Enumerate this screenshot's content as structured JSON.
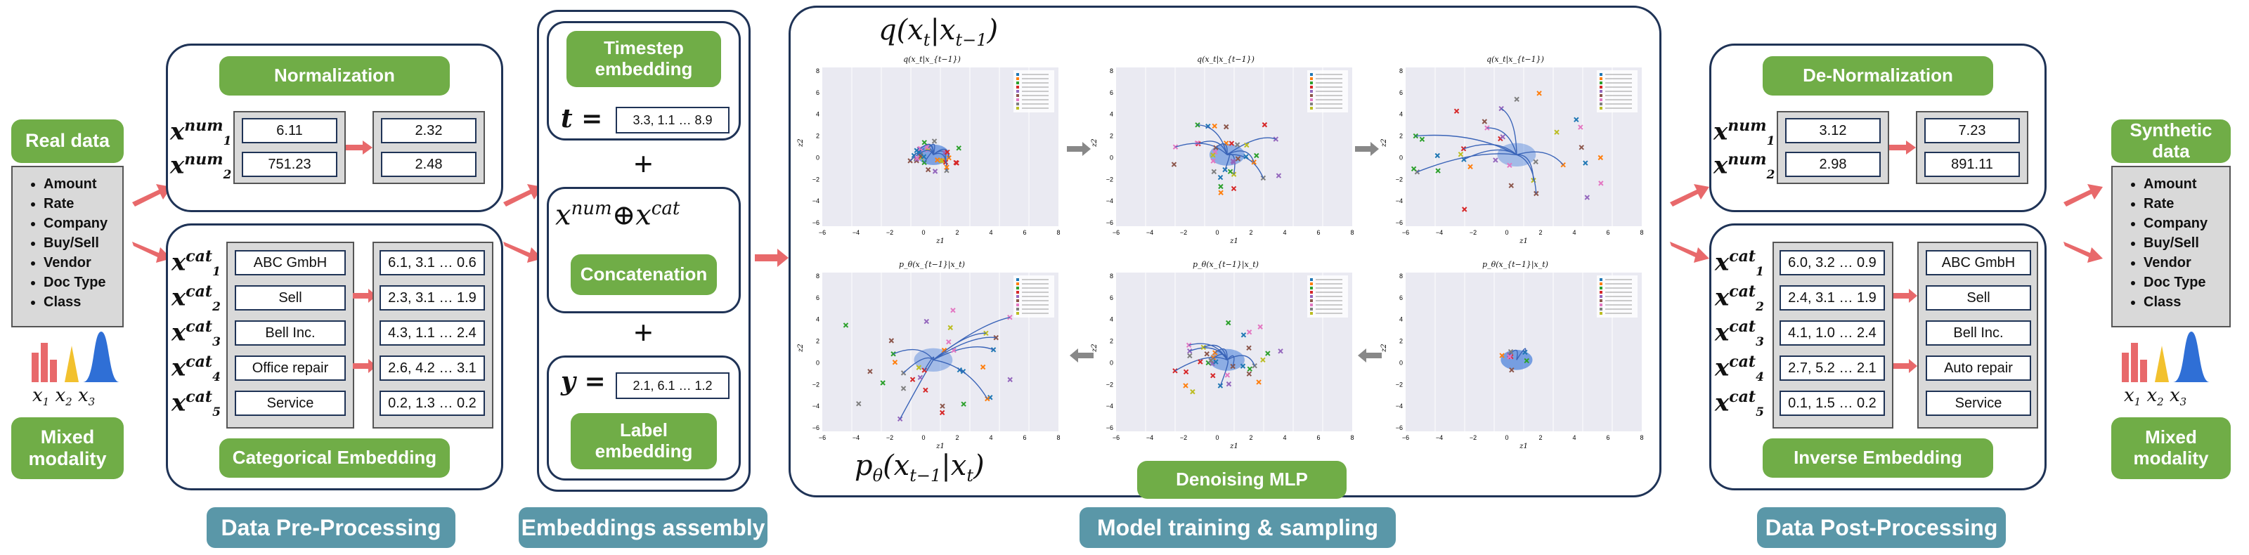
{
  "colors": {
    "green": "#70ad47",
    "teal": "#5a97a8",
    "navy": "#1f3356",
    "arrow_red": "#e8696b",
    "grey": "#d9d9d9",
    "plot_bg": "#eaeaf2"
  },
  "real_data": {
    "title": "Real data",
    "items": [
      "Amount",
      "Rate",
      "Company",
      "Buy/Sell",
      "Vendor",
      "Doc Type",
      "Class"
    ],
    "x_labels": [
      "x",
      "x",
      "x"
    ],
    "x_subs": [
      "1",
      "2",
      "3"
    ],
    "modality": "Mixed modality"
  },
  "synthetic_data": {
    "title": "Synthetic data",
    "items": [
      "Amount",
      "Rate",
      "Company",
      "Buy/Sell",
      "Vendor",
      "Doc Type",
      "Class"
    ],
    "modality": "Mixed modality"
  },
  "preprocessing": {
    "normalization_label": "Normalization",
    "num_vars": [
      "num",
      "num"
    ],
    "num_subs": [
      "1",
      "2"
    ],
    "num_inputs": [
      "6.11",
      "751.23"
    ],
    "num_outputs": [
      "2.32",
      "2.48"
    ],
    "cat_subs": [
      "1",
      "2",
      "3",
      "4",
      "5"
    ],
    "cat_inputs": [
      "ABC GmbH",
      "Sell",
      "Bell Inc.",
      "Office repair",
      "Service"
    ],
    "cat_outputs": [
      "6.1, 3.1 … 0.6",
      "2.3, 3.1 … 1.9",
      "4.3, 1.1 … 2.4",
      "2.6, 4.2 … 3.1",
      "0.2, 1.3 … 0.2"
    ],
    "embedding_label": "Categorical Embedding",
    "stage_label": "Data Pre-Processing"
  },
  "embeddings": {
    "timestep_label": "Timestep embedding",
    "t_var": "t =",
    "t_value": "3.3, 1.1 … 8.9",
    "plus1": "+",
    "concat_formula": "x^num⊕x^cat",
    "concat_label": "Concatenation",
    "plus2": "+",
    "y_var": "y =",
    "y_value": "2.1, 6.1 … 1.2",
    "label_embedding": "Label embedding",
    "stage_label": "Embeddings assembly"
  },
  "model": {
    "forward_formula": "q(x_t|x_{t−1})",
    "reverse_formula": "p_θ(x_{t−1}|x_t)",
    "top_plot_titles": [
      "q(x_t|x_{t−1})",
      "q(x_t|x_{t−1})",
      "q(x_t|x_{t−1})"
    ],
    "bottom_plot_titles": [
      "p_θ(x_{t−1}|x_t)",
      "p_θ(x_{t−1}|x_t)",
      "p_θ(x_{t−1}|x_t)"
    ],
    "x_axis_label": "z1",
    "y_axis_label": "z2",
    "x_ticks": [
      "−6",
      "−4",
      "−2",
      "0",
      "2",
      "4",
      "6",
      "8"
    ],
    "y_ticks": [
      "8",
      "6",
      "4",
      "2",
      "0",
      "−2",
      "−4",
      "−6"
    ],
    "denoise_label": "Denoising MLP",
    "stage_label": "Model training & sampling"
  },
  "postprocessing": {
    "denorm_label": "De-Normalization",
    "num_inputs": [
      "3.12",
      "2.98"
    ],
    "num_outputs": [
      "7.23",
      "891.11"
    ],
    "cat_inputs": [
      "6.0, 3.2 … 0.9",
      "2.4, 3.1 … 1.9",
      "4.1, 1.0 … 2.4",
      "2.7, 5.2 … 2.1",
      "0.1, 1.5 … 0.2"
    ],
    "cat_outputs": [
      "ABC GmbH",
      "Sell",
      "Bell Inc.",
      "Auto repair",
      "Service"
    ],
    "inverse_label": "Inverse Embedding",
    "stage_label": "Data Post-Processing"
  }
}
